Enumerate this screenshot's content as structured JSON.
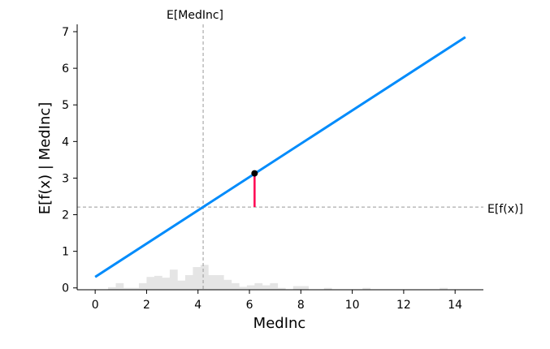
{
  "chart_data": {
    "type": "line",
    "xlabel": "MedInc",
    "ylabel": "E[f(x) | MedInc]",
    "xlim": [
      -0.7,
      15.1
    ],
    "ylim": [
      -0.05,
      7.2
    ],
    "x_ticks": [
      0,
      2,
      4,
      6,
      8,
      10,
      12,
      14
    ],
    "y_ticks": [
      0,
      1,
      2,
      3,
      4,
      5,
      6,
      7
    ],
    "line": {
      "x": [
        0.0,
        14.4
      ],
      "y": [
        0.3,
        6.85
      ]
    },
    "expected_value_x": 4.2,
    "expected_value_x_label": "E[MedInc]",
    "expected_value_y": 2.21,
    "expected_value_y_label": "E[f(x)]",
    "highlight_point": {
      "x": 6.2,
      "y": 3.13
    },
    "histogram": {
      "bin_edges": [
        0.5,
        0.8,
        1.1,
        1.4,
        1.7,
        2.0,
        2.3,
        2.6,
        2.9,
        3.2,
        3.5,
        3.8,
        4.1,
        4.4,
        4.7,
        5.0,
        5.3,
        5.6,
        5.9,
        6.2,
        6.5,
        6.8,
        7.1,
        7.4,
        7.7,
        8.0,
        8.3,
        8.6,
        8.9,
        9.2,
        9.5,
        9.8,
        10.1,
        10.4,
        10.7,
        11.0,
        11.3,
        11.6,
        11.9,
        12.2,
        12.5,
        12.8,
        13.1,
        13.4,
        13.7
      ],
      "heights": [
        0.07,
        0.18,
        0.05,
        0.05,
        0.18,
        0.35,
        0.38,
        0.33,
        0.55,
        0.25,
        0.4,
        0.62,
        0.68,
        0.4,
        0.4,
        0.27,
        0.18,
        0.08,
        0.12,
        0.18,
        0.12,
        0.18,
        0.05,
        0,
        0.1,
        0.1,
        0,
        0,
        0.05,
        0,
        0,
        0,
        0,
        0.05,
        0,
        0,
        0,
        0,
        0,
        0,
        0,
        0,
        0,
        0.05
      ]
    },
    "colors": {
      "line": "#008bfb",
      "highlight": "#ff0051",
      "point": "#000000",
      "histogram": "#e5e5e5",
      "reference": "#999999"
    }
  }
}
